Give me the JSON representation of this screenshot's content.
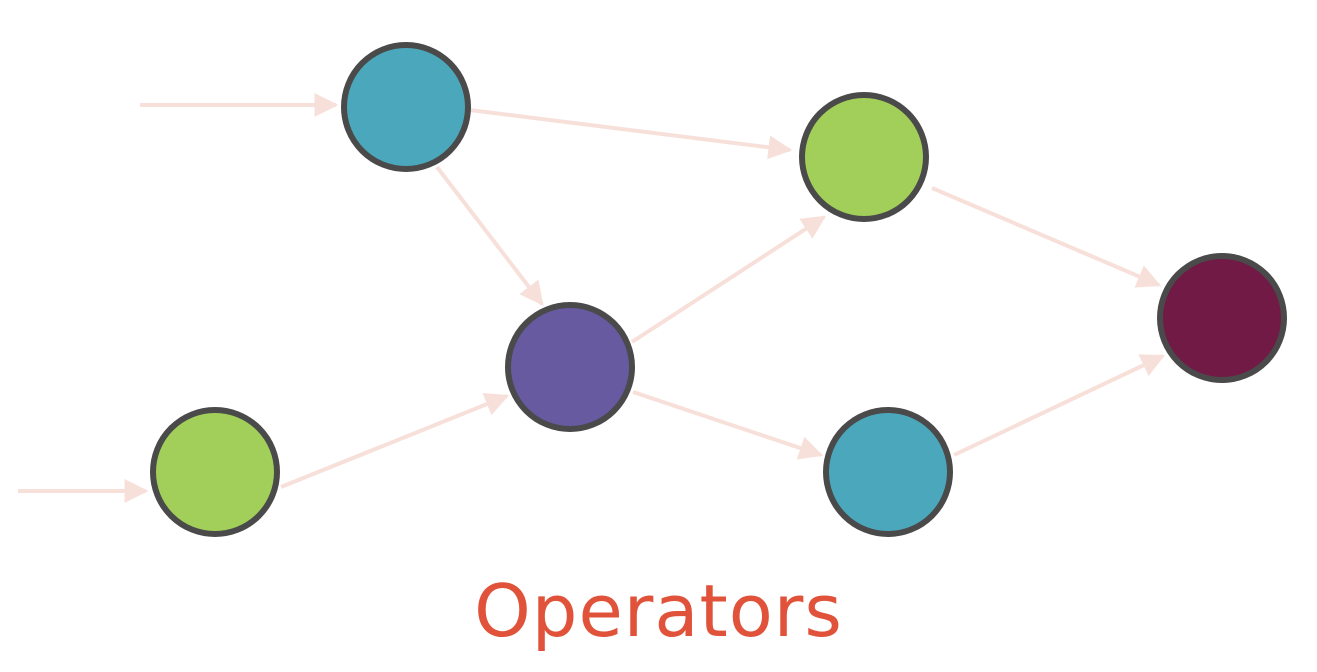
{
  "title": "Operators",
  "colors": {
    "edge": "#f8e0da",
    "node_stroke": "#4a4a4a",
    "caption": "#e0533a"
  },
  "nodes": [
    {
      "id": "teal-top",
      "fill": "#4ba8bc"
    },
    {
      "id": "green-top",
      "fill": "#a2cf5a"
    },
    {
      "id": "purple-center",
      "fill": "#675aa0"
    },
    {
      "id": "green-bottom-left",
      "fill": "#a2cf5a"
    },
    {
      "id": "teal-bottom",
      "fill": "#4ba8bc"
    },
    {
      "id": "maroon-output",
      "fill": "#701a45"
    }
  ]
}
